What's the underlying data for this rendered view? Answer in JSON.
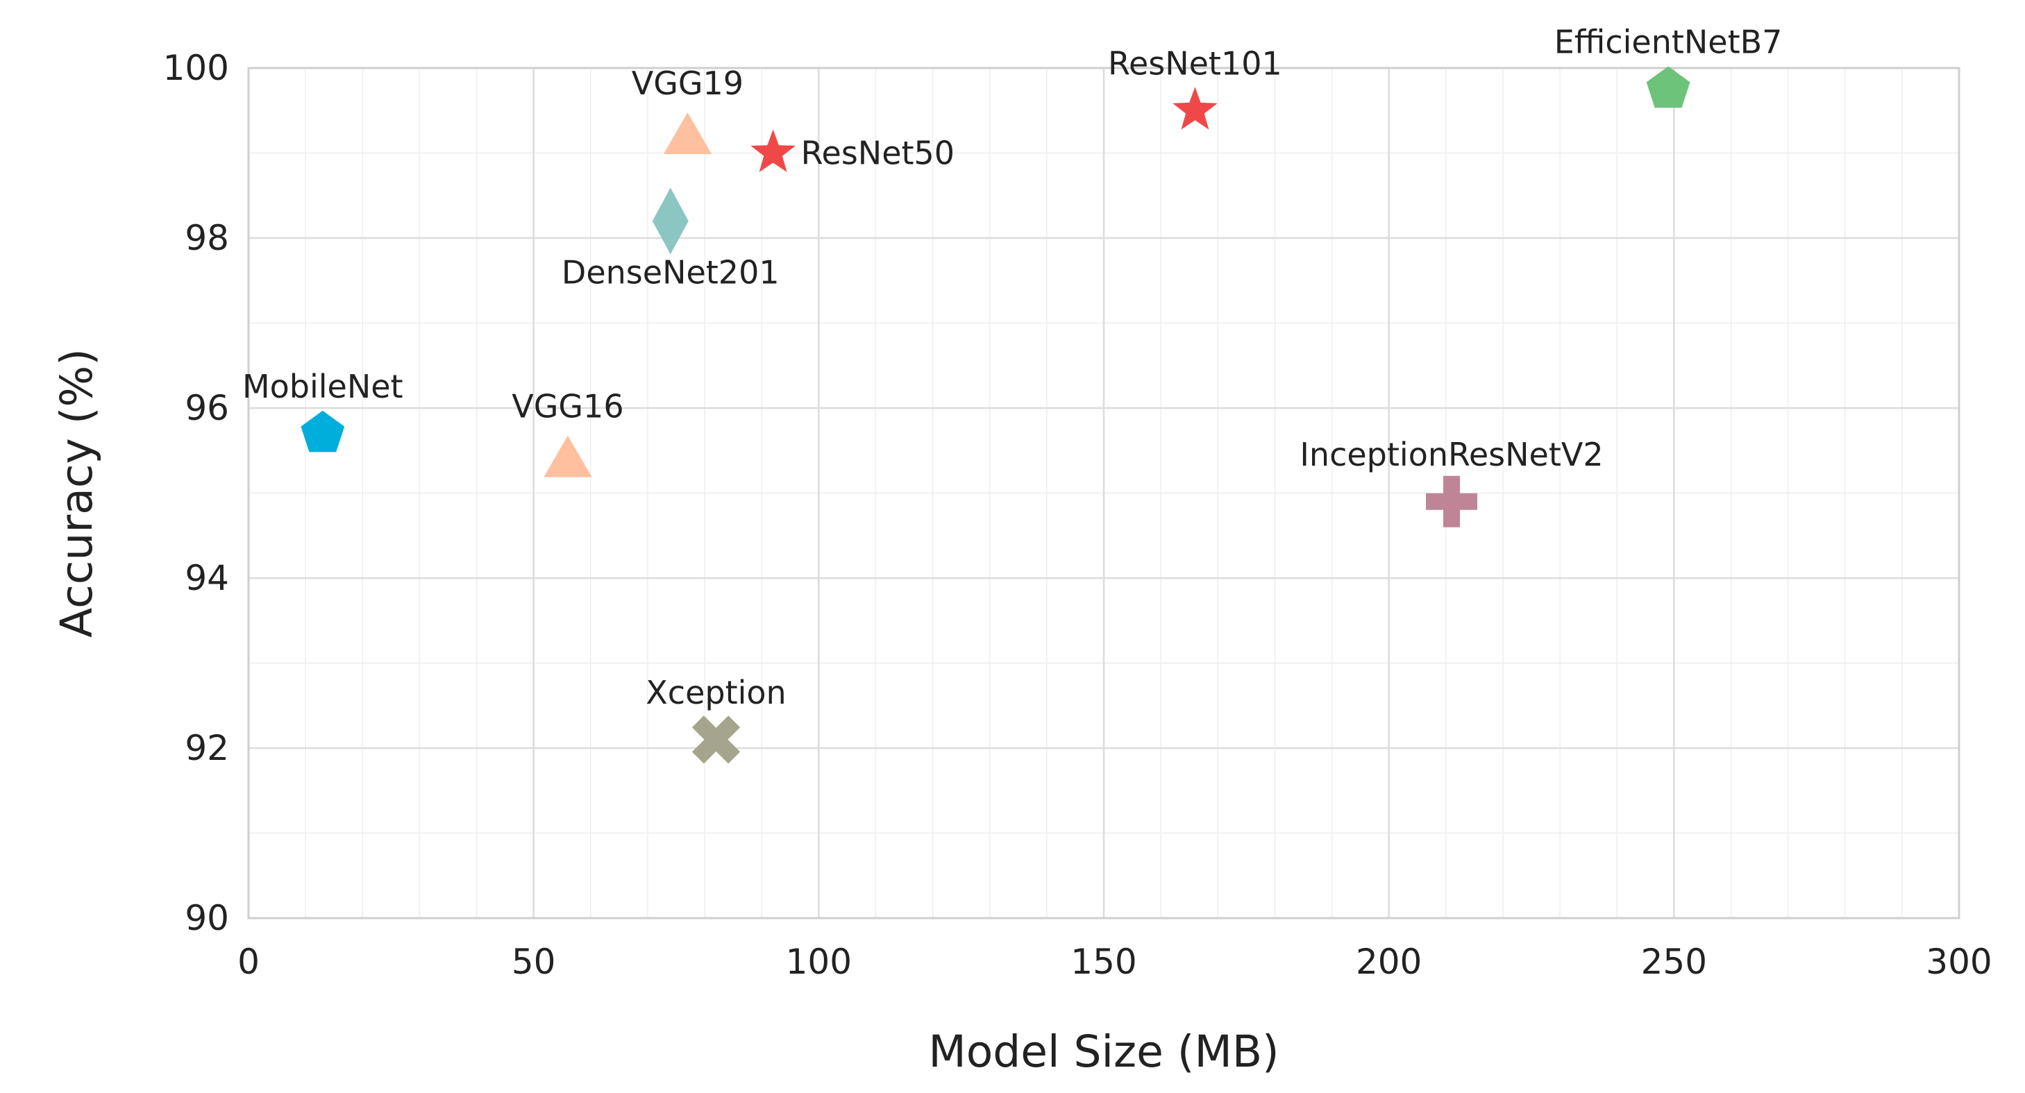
{
  "chart_data": {
    "type": "scatter",
    "title": "",
    "xlabel": "Model Size (MB)",
    "ylabel": "Accuracy (%)",
    "xlim": [
      0,
      300
    ],
    "ylim": [
      90,
      100
    ],
    "xticks": [
      0,
      50,
      100,
      150,
      200,
      250,
      300
    ],
    "yticks": [
      90,
      92,
      94,
      96,
      98,
      100
    ],
    "x_minor_step": 10,
    "y_minor_step": 1,
    "grid": true,
    "legend": "none",
    "points": [
      {
        "name": "MobileNet",
        "x": 13,
        "y": 95.7,
        "marker": "pentagon",
        "color": "#00AEDB",
        "label_pos": "above"
      },
      {
        "name": "VGG16",
        "x": 56,
        "y": 95.4,
        "marker": "triangle",
        "color": "#FFC09F",
        "label_pos": "above"
      },
      {
        "name": "VGG19",
        "x": 77,
        "y": 99.2,
        "marker": "triangle",
        "color": "#FFC09F",
        "label_pos": "above"
      },
      {
        "name": "DenseNet201",
        "x": 74,
        "y": 98.2,
        "marker": "diamond",
        "color": "#8CC6C3",
        "label_pos": "below"
      },
      {
        "name": "ResNet50",
        "x": 92,
        "y": 99.0,
        "marker": "star",
        "color": "#F04848",
        "label_pos": "right"
      },
      {
        "name": "ResNet101",
        "x": 166,
        "y": 99.5,
        "marker": "star",
        "color": "#F04848",
        "label_pos": "above"
      },
      {
        "name": "Xception",
        "x": 82,
        "y": 92.1,
        "marker": "x",
        "color": "#A5A58D",
        "label_pos": "above"
      },
      {
        "name": "InceptionResNetV2",
        "x": 211,
        "y": 94.9,
        "marker": "plus",
        "color": "#C08497",
        "label_pos": "above"
      },
      {
        "name": "EfficientNetB7",
        "x": 249,
        "y": 99.75,
        "marker": "pentagon",
        "color": "#6CC379",
        "label_pos": "above"
      }
    ]
  }
}
